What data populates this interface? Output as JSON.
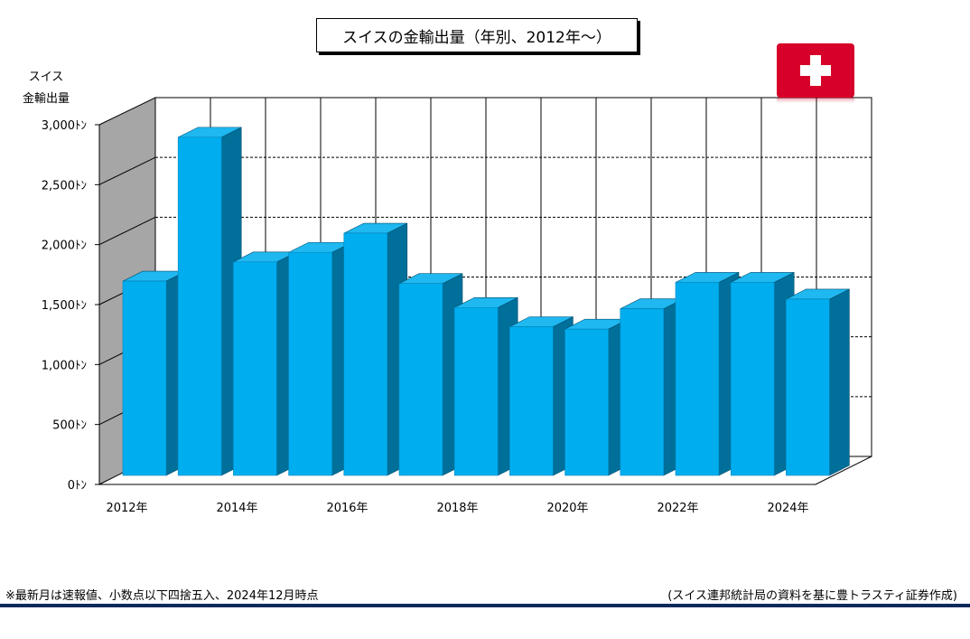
{
  "chart_data": {
    "type": "bar",
    "title": "スイスの金輸出量（年別、2012年～）",
    "ylabel": "スイス\n金輸出量",
    "categories": [
      "2012年",
      "2013年",
      "2014年",
      "2015年",
      "2016年",
      "2017年",
      "2018年",
      "2019年",
      "2020年",
      "2021年",
      "2022年",
      "2023年",
      "2024年"
    ],
    "x_tick_labels": [
      "2012年",
      "",
      "2014年",
      "",
      "2016年",
      "",
      "2018年",
      "",
      "2020年",
      "",
      "2022年",
      "",
      "2024年"
    ],
    "values": [
      1620,
      2820,
      1780,
      1860,
      2020,
      1600,
      1400,
      1240,
      1220,
      1390,
      1610,
      1610,
      1470
    ],
    "ylim": [
      0,
      3000
    ],
    "yticks": [
      0,
      500,
      1000,
      1500,
      2000,
      2500,
      3000
    ],
    "ytick_labels": [
      "0ﾄﾝ",
      "500ﾄﾝ",
      "1,000ﾄﾝ",
      "1,500ﾄﾝ",
      "2,000ﾄﾝ",
      "2,500ﾄﾝ",
      "3,000ﾄﾝ"
    ],
    "grid": true,
    "bar_color": "#00aeef",
    "bar_side_color": "#006f99",
    "wall_color": "#a6a6a6"
  },
  "flag_icon": "swiss-flag-icon",
  "flag_color": "#d7002a",
  "footer": {
    "note": "※最新月は速報値、小数点以下四捨五入、2024年12月時点",
    "source": "(スイス連邦統計局の資料を基に豊トラスティ証券作成)"
  }
}
